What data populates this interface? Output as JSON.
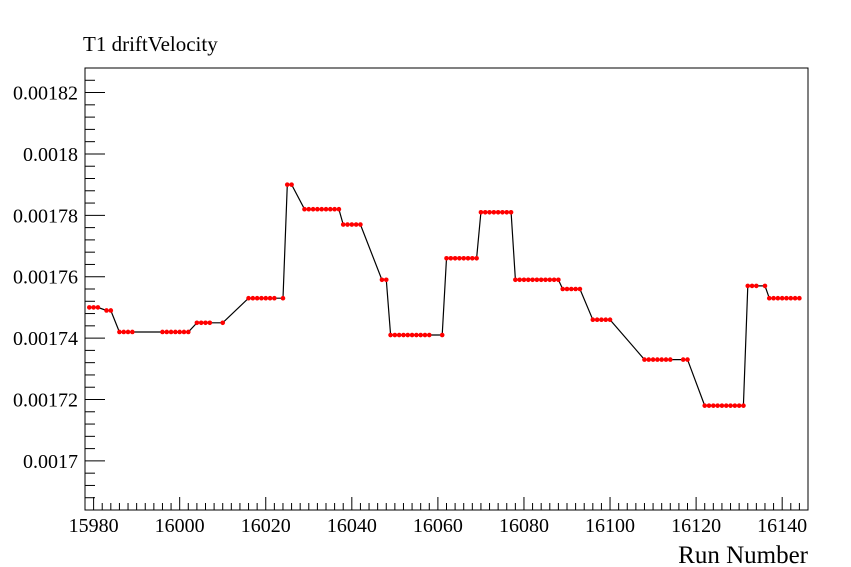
{
  "chart_data": {
    "type": "line",
    "title": "T1 driftVelocity",
    "xlabel": "Run Number",
    "ylabel": "",
    "xlim": [
      15978,
      16146
    ],
    "ylim": [
      0.001684,
      0.001828
    ],
    "xticks": [
      15980,
      16000,
      16020,
      16040,
      16060,
      16080,
      16100,
      16120,
      16140
    ],
    "xtick_labels": [
      "15980",
      "16000",
      "16020",
      "16040",
      "16060",
      "16080",
      "16100",
      "16120",
      "16140"
    ],
    "yticks": [
      0.0017,
      0.00172,
      0.00174,
      0.00176,
      0.00178,
      0.0018,
      0.00182
    ],
    "ytick_labels": [
      "0.0017",
      "0.00172",
      "0.00174",
      "0.00176",
      "0.00178",
      "0.0018",
      "0.00182"
    ],
    "grid": false,
    "line_color": "#000000",
    "marker_color": "#ff0000",
    "series": [
      {
        "x": [
          15979,
          15980,
          15981,
          15983,
          15984,
          15986,
          15987,
          15988,
          15989,
          15996,
          15997,
          15998,
          15999,
          16000,
          16001,
          16002,
          16004,
          16005,
          16006,
          16007,
          16010,
          16016,
          16017,
          16018,
          16019,
          16020,
          16021,
          16022,
          16024,
          16025,
          16026,
          16029,
          16030,
          16031,
          16032,
          16033,
          16034,
          16035,
          16036,
          16037,
          16038,
          16039,
          16040,
          16041,
          16042,
          16047,
          16048,
          16049,
          16050,
          16051,
          16052,
          16053,
          16054,
          16055,
          16056,
          16057,
          16058,
          16061,
          16062,
          16063,
          16064,
          16065,
          16066,
          16067,
          16068,
          16069,
          16070,
          16071,
          16072,
          16073,
          16074,
          16075,
          16076,
          16077,
          16078,
          16079,
          16080,
          16081,
          16082,
          16083,
          16084,
          16085,
          16086,
          16087,
          16088,
          16089,
          16090,
          16091,
          16092,
          16093,
          16096,
          16097,
          16098,
          16099,
          16100,
          16108,
          16109,
          16110,
          16111,
          16112,
          16113,
          16114,
          16117,
          16118,
          16122,
          16123,
          16124,
          16125,
          16126,
          16127,
          16128,
          16129,
          16130,
          16131,
          16132,
          16133,
          16134,
          16136,
          16137,
          16138,
          16139,
          16140,
          16141,
          16142,
          16143,
          16144
        ],
        "y": [
          0.00175,
          0.00175,
          0.00175,
          0.001749,
          0.001749,
          0.001742,
          0.001742,
          0.001742,
          0.001742,
          0.001742,
          0.001742,
          0.001742,
          0.001742,
          0.001742,
          0.001742,
          0.001742,
          0.001745,
          0.001745,
          0.001745,
          0.001745,
          0.001745,
          0.001753,
          0.001753,
          0.001753,
          0.001753,
          0.001753,
          0.001753,
          0.001753,
          0.001753,
          0.00179,
          0.00179,
          0.001782,
          0.001782,
          0.001782,
          0.001782,
          0.001782,
          0.001782,
          0.001782,
          0.001782,
          0.001782,
          0.001777,
          0.001777,
          0.001777,
          0.001777,
          0.001777,
          0.001759,
          0.001759,
          0.001741,
          0.001741,
          0.001741,
          0.001741,
          0.001741,
          0.001741,
          0.001741,
          0.001741,
          0.001741,
          0.001741,
          0.001741,
          0.001766,
          0.001766,
          0.001766,
          0.001766,
          0.001766,
          0.001766,
          0.001766,
          0.001766,
          0.001781,
          0.001781,
          0.001781,
          0.001781,
          0.001781,
          0.001781,
          0.001781,
          0.001781,
          0.001759,
          0.001759,
          0.001759,
          0.001759,
          0.001759,
          0.001759,
          0.001759,
          0.001759,
          0.001759,
          0.001759,
          0.001759,
          0.001756,
          0.001756,
          0.001756,
          0.001756,
          0.001756,
          0.001746,
          0.001746,
          0.001746,
          0.001746,
          0.001746,
          0.001733,
          0.001733,
          0.001733,
          0.001733,
          0.001733,
          0.001733,
          0.001733,
          0.001733,
          0.001733,
          0.001718,
          0.001718,
          0.001718,
          0.001718,
          0.001718,
          0.001718,
          0.001718,
          0.001718,
          0.001718,
          0.001718,
          0.001757,
          0.001757,
          0.001757,
          0.001757,
          0.001753,
          0.001753,
          0.001753,
          0.001753,
          0.001753,
          0.001753,
          0.001753,
          0.001753
        ]
      }
    ]
  }
}
